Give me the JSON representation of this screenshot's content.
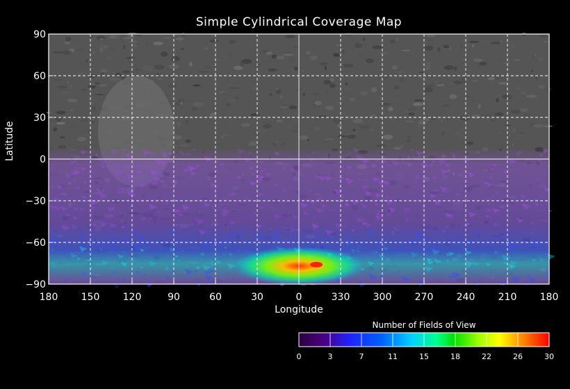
{
  "chart_data": {
    "type": "heatmap",
    "title": "Simple Cylindrical Coverage Map",
    "xlabel": "Longitude",
    "ylabel": "Latitude",
    "x_ticks": [
      "180",
      "150",
      "120",
      "90",
      "60",
      "30",
      "0",
      "330",
      "300",
      "270",
      "240",
      "210",
      "180"
    ],
    "y_ticks": [
      "90",
      "60",
      "30",
      "0",
      "-30",
      "-60",
      "-90"
    ],
    "x_range": [
      180,
      -180
    ],
    "y_range": [
      -90,
      90
    ],
    "grid": true,
    "coverage_summary": {
      "covered_latitudes": [
        -90,
        8
      ],
      "peak_count_region": {
        "longitude": [
          -15,
          15
        ],
        "latitude": [
          -82,
          -72
        ]
      },
      "max_value_shown": 30
    },
    "colorbar": {
      "title": "Number of Fields of View",
      "ticks": [
        "0",
        "3",
        "7",
        "11",
        "15",
        "18",
        "22",
        "26",
        "30"
      ],
      "range": [
        0,
        30
      ],
      "colors": [
        "#4b0082",
        "#0000ff",
        "#00a0ff",
        "#00ff80",
        "#00d000",
        "#c0ff00",
        "#ffff00",
        "#ff8000",
        "#ff0000"
      ]
    }
  }
}
